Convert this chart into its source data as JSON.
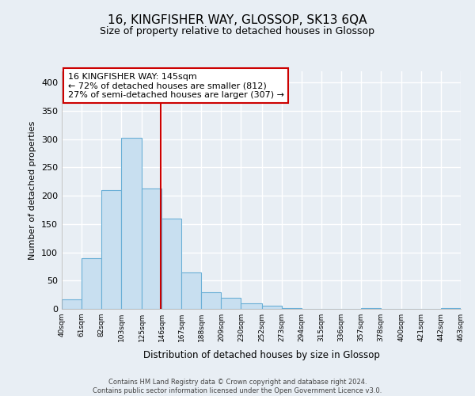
{
  "title": "16, KINGFISHER WAY, GLOSSOP, SK13 6QA",
  "subtitle": "Size of property relative to detached houses in Glossop",
  "xlabel": "Distribution of detached houses by size in Glossop",
  "ylabel": "Number of detached properties",
  "bar_color": "#c8dff0",
  "bar_edge_color": "#6aafd6",
  "reference_line_x": 145,
  "reference_line_color": "#cc0000",
  "bin_edges": [
    40,
    61,
    82,
    103,
    125,
    146,
    167,
    188,
    209,
    230,
    252,
    273,
    294,
    315,
    336,
    357,
    378,
    400,
    421,
    442,
    463
  ],
  "bar_heights": [
    17,
    90,
    210,
    303,
    213,
    160,
    65,
    30,
    20,
    10,
    5,
    2,
    0,
    0,
    0,
    2,
    0,
    0,
    0,
    2
  ],
  "tick_labels": [
    "40sqm",
    "61sqm",
    "82sqm",
    "103sqm",
    "125sqm",
    "146sqm",
    "167sqm",
    "188sqm",
    "209sqm",
    "230sqm",
    "252sqm",
    "273sqm",
    "294sqm",
    "315sqm",
    "336sqm",
    "357sqm",
    "378sqm",
    "400sqm",
    "421sqm",
    "442sqm",
    "463sqm"
  ],
  "ylim": [
    0,
    420
  ],
  "yticks": [
    0,
    50,
    100,
    150,
    200,
    250,
    300,
    350,
    400
  ],
  "annotation_title": "16 KINGFISHER WAY: 145sqm",
  "annotation_line1": "← 72% of detached houses are smaller (812)",
  "annotation_line2": "27% of semi-detached houses are larger (307) →",
  "annotation_box_color": "#ffffff",
  "annotation_box_edge": "#cc0000",
  "footer_line1": "Contains HM Land Registry data © Crown copyright and database right 2024.",
  "footer_line2": "Contains public sector information licensed under the Open Government Licence v3.0.",
  "bg_color": "#e8eef4",
  "grid_color": "#ffffff"
}
